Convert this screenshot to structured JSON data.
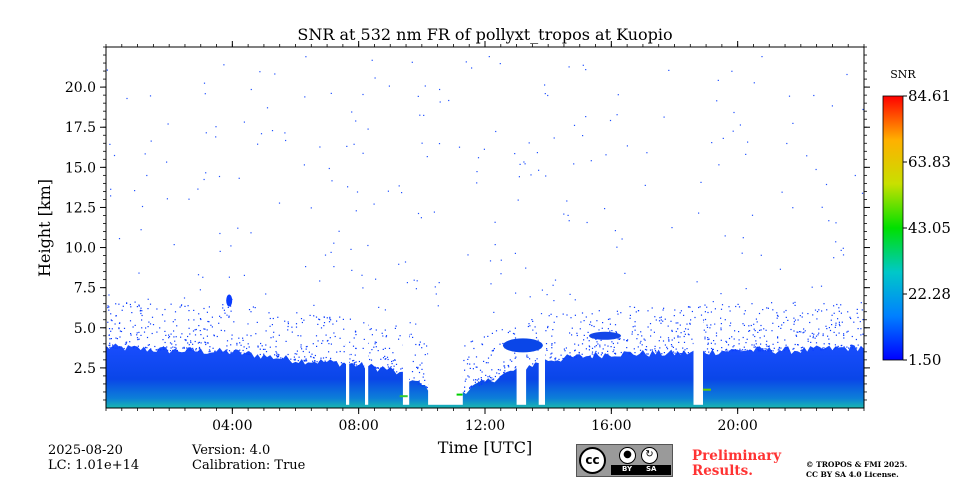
{
  "chart_data": {
    "type": "heatmap",
    "title": "SNR at 532 nm FR of pollyxt_tropos at Kuopio",
    "xlabel": "Time [UTC]",
    "ylabel": "Height [km]",
    "xlim_hours": [
      0,
      24
    ],
    "ylim_km": [
      0,
      22.5
    ],
    "x_ticks": [
      {
        "hour": 4,
        "label": "04:00"
      },
      {
        "hour": 8,
        "label": "08:00"
      },
      {
        "hour": 12,
        "label": "12:00"
      },
      {
        "hour": 16,
        "label": "16:00"
      },
      {
        "hour": 20,
        "label": "20:00"
      }
    ],
    "y_ticks": [
      {
        "value": 2.5,
        "label": "2.5"
      },
      {
        "value": 5.0,
        "label": "5.0"
      },
      {
        "value": 7.5,
        "label": "7.5"
      },
      {
        "value": 10.0,
        "label": "10.0"
      },
      {
        "value": 12.5,
        "label": "12.5"
      },
      {
        "value": 15.0,
        "label": "15.0"
      },
      {
        "value": 17.5,
        "label": "17.5"
      },
      {
        "value": 20.0,
        "label": "20.0"
      }
    ],
    "colorbar": {
      "title": "SNR",
      "min": 1.5,
      "max": 84.61,
      "tick_labels": [
        "1.50",
        "22.28",
        "43.05",
        "63.83",
        "84.61"
      ],
      "colormap": [
        "#0000ff",
        "#0080ff",
        "#00c8c8",
        "#00e000",
        "#c8e000",
        "#ffb000",
        "#ff0000"
      ]
    },
    "signal_profile": {
      "description_units": "top of dense signal layer in km vs time in hours",
      "hours": [
        0,
        2,
        4,
        6,
        7.5,
        9,
        10,
        11,
        12,
        13,
        14,
        16,
        18,
        20,
        22,
        24
      ],
      "layer_top_km": [
        3.8,
        3.6,
        3.5,
        3.0,
        2.8,
        2.4,
        1.4,
        0.8,
        1.6,
        2.4,
        3.0,
        3.4,
        3.4,
        3.6,
        3.6,
        3.8
      ]
    },
    "gaps_hours": [
      [
        7.6,
        7.7
      ],
      [
        8.2,
        8.3
      ],
      [
        9.4,
        9.6
      ],
      [
        10.2,
        11.3
      ],
      [
        13.0,
        13.3
      ],
      [
        13.7,
        13.9
      ],
      [
        18.6,
        18.9
      ]
    ]
  },
  "footer": {
    "date": "2025-08-20",
    "lc": "LC: 1.01e+14",
    "version": "Version: 4.0",
    "calibration": "Calibration: True",
    "license_badge": {
      "cc": "cc",
      "by": "BY",
      "sa": "SA"
    },
    "preliminary_line1": "Preliminary",
    "preliminary_line2": "Results.",
    "copyright_line1": "© TROPOS & FMI 2025.",
    "copyright_line2": "CC BY SA 4.0 License."
  }
}
